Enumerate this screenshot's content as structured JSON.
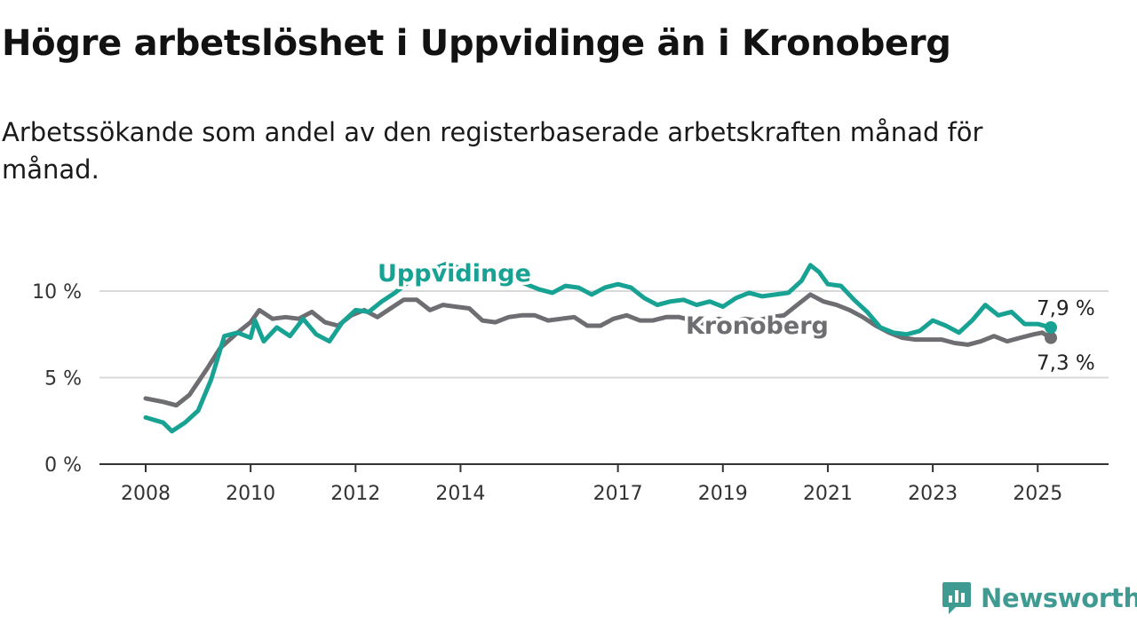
{
  "title": "Högre arbetslöshet i Uppvidinge än i Kronoberg",
  "subtitle": "Arbetssökande som andel av den registerbaserade arbetskraften månad för månad.",
  "brand": "Newsworthy",
  "colors": {
    "uppvidinge": "#17a293",
    "kronoberg": "#6e6d72",
    "grid": "#d9d9d9",
    "axis": "#333333"
  },
  "chart_data": {
    "type": "line",
    "title": "Högre arbetslöshet i Uppvidinge än i Kronoberg",
    "subtitle": "Arbetssökande som andel av den registerbaserade arbetskraften månad för månad.",
    "xlabel": "",
    "ylabel": "",
    "x_range": [
      "2008-01",
      "2025-04"
    ],
    "ylim": [
      0,
      12
    ],
    "y_ticks": [
      0,
      5,
      10
    ],
    "y_tick_labels": [
      "0 %",
      "5 %",
      "10 %"
    ],
    "x_ticks": [
      2008,
      2010,
      2012,
      2014,
      2017,
      2019,
      2021,
      2023,
      2025
    ],
    "x_tick_labels": [
      "2008",
      "2010",
      "2012",
      "2014",
      "2017",
      "2019",
      "2021",
      "2023",
      "2025"
    ],
    "grid": true,
    "legend": "inline labels",
    "series": [
      {
        "name": "Uppvidinge",
        "end_value_label": "7,9 %",
        "points": [
          [
            "2008-01",
            2.7
          ],
          [
            "2008-05",
            2.4
          ],
          [
            "2008-07",
            1.9
          ],
          [
            "2008-10",
            2.4
          ],
          [
            "2009-01",
            3.1
          ],
          [
            "2009-04",
            4.9
          ],
          [
            "2009-07",
            7.4
          ],
          [
            "2009-10",
            7.6
          ],
          [
            "2010-01",
            7.3
          ],
          [
            "2010-02",
            8.3
          ],
          [
            "2010-04",
            7.1
          ],
          [
            "2010-07",
            7.9
          ],
          [
            "2010-10",
            7.4
          ],
          [
            "2011-01",
            8.4
          ],
          [
            "2011-04",
            7.5
          ],
          [
            "2011-07",
            7.1
          ],
          [
            "2011-10",
            8.2
          ],
          [
            "2012-01",
            8.9
          ],
          [
            "2012-04",
            8.8
          ],
          [
            "2012-07",
            9.4
          ],
          [
            "2012-10",
            9.9
          ],
          [
            "2013-01",
            10.5
          ],
          [
            "2013-04",
            10.9
          ],
          [
            "2013-07",
            11.3
          ],
          [
            "2013-10",
            11.6
          ],
          [
            "2014-01",
            11.3
          ],
          [
            "2014-04",
            11.0
          ],
          [
            "2014-07",
            11.1
          ],
          [
            "2014-10",
            10.8
          ],
          [
            "2015-01",
            10.7
          ],
          [
            "2015-04",
            10.4
          ],
          [
            "2015-07",
            10.1
          ],
          [
            "2015-10",
            9.9
          ],
          [
            "2016-01",
            10.3
          ],
          [
            "2016-04",
            10.2
          ],
          [
            "2016-07",
            9.8
          ],
          [
            "2016-10",
            10.2
          ],
          [
            "2017-01",
            10.4
          ],
          [
            "2017-04",
            10.2
          ],
          [
            "2017-07",
            9.6
          ],
          [
            "2017-10",
            9.2
          ],
          [
            "2018-01",
            9.4
          ],
          [
            "2018-04",
            9.5
          ],
          [
            "2018-07",
            9.2
          ],
          [
            "2018-10",
            9.4
          ],
          [
            "2019-01",
            9.1
          ],
          [
            "2019-04",
            9.6
          ],
          [
            "2019-07",
            9.9
          ],
          [
            "2019-10",
            9.7
          ],
          [
            "2020-01",
            9.8
          ],
          [
            "2020-04",
            9.9
          ],
          [
            "2020-07",
            10.6
          ],
          [
            "2020-09",
            11.5
          ],
          [
            "2020-11",
            11.1
          ],
          [
            "2021-01",
            10.4
          ],
          [
            "2021-04",
            10.3
          ],
          [
            "2021-07",
            9.5
          ],
          [
            "2021-10",
            8.8
          ],
          [
            "2022-01",
            7.9
          ],
          [
            "2022-04",
            7.6
          ],
          [
            "2022-07",
            7.5
          ],
          [
            "2022-10",
            7.7
          ],
          [
            "2023-01",
            8.3
          ],
          [
            "2023-04",
            8.0
          ],
          [
            "2023-07",
            7.6
          ],
          [
            "2023-10",
            8.3
          ],
          [
            "2024-01",
            9.2
          ],
          [
            "2024-04",
            8.6
          ],
          [
            "2024-07",
            8.8
          ],
          [
            "2024-10",
            8.1
          ],
          [
            "2025-01",
            8.1
          ],
          [
            "2025-04",
            7.9
          ]
        ]
      },
      {
        "name": "Kronoberg",
        "end_value_label": "7,3 %",
        "points": [
          [
            "2008-01",
            3.8
          ],
          [
            "2008-05",
            3.6
          ],
          [
            "2008-08",
            3.4
          ],
          [
            "2008-11",
            4.0
          ],
          [
            "2009-03",
            5.5
          ],
          [
            "2009-06",
            6.7
          ],
          [
            "2009-10",
            7.6
          ],
          [
            "2010-01",
            8.2
          ],
          [
            "2010-03",
            8.9
          ],
          [
            "2010-06",
            8.4
          ],
          [
            "2010-09",
            8.5
          ],
          [
            "2010-12",
            8.4
          ],
          [
            "2011-03",
            8.8
          ],
          [
            "2011-06",
            8.2
          ],
          [
            "2011-09",
            8.0
          ],
          [
            "2011-12",
            8.6
          ],
          [
            "2012-03",
            8.9
          ],
          [
            "2012-06",
            8.5
          ],
          [
            "2012-09",
            9.0
          ],
          [
            "2012-12",
            9.5
          ],
          [
            "2013-03",
            9.5
          ],
          [
            "2013-06",
            8.9
          ],
          [
            "2013-09",
            9.2
          ],
          [
            "2013-12",
            9.1
          ],
          [
            "2014-03",
            9.0
          ],
          [
            "2014-06",
            8.3
          ],
          [
            "2014-09",
            8.2
          ],
          [
            "2014-12",
            8.5
          ],
          [
            "2015-03",
            8.6
          ],
          [
            "2015-06",
            8.6
          ],
          [
            "2015-09",
            8.3
          ],
          [
            "2015-12",
            8.4
          ],
          [
            "2016-03",
            8.5
          ],
          [
            "2016-06",
            8.0
          ],
          [
            "2016-09",
            8.0
          ],
          [
            "2016-12",
            8.4
          ],
          [
            "2017-03",
            8.6
          ],
          [
            "2017-06",
            8.3
          ],
          [
            "2017-09",
            8.3
          ],
          [
            "2017-12",
            8.5
          ],
          [
            "2018-03",
            8.5
          ],
          [
            "2018-06",
            8.3
          ],
          [
            "2018-09",
            8.1
          ],
          [
            "2018-12",
            8.4
          ],
          [
            "2019-03",
            8.2
          ],
          [
            "2019-06",
            8.4
          ],
          [
            "2019-09",
            8.3
          ],
          [
            "2019-12",
            8.5
          ],
          [
            "2020-03",
            8.6
          ],
          [
            "2020-06",
            9.2
          ],
          [
            "2020-09",
            9.8
          ],
          [
            "2020-12",
            9.4
          ],
          [
            "2021-03",
            9.2
          ],
          [
            "2021-06",
            8.9
          ],
          [
            "2021-09",
            8.5
          ],
          [
            "2021-12",
            8.0
          ],
          [
            "2022-03",
            7.6
          ],
          [
            "2022-06",
            7.3
          ],
          [
            "2022-09",
            7.2
          ],
          [
            "2022-12",
            7.2
          ],
          [
            "2023-03",
            7.2
          ],
          [
            "2023-06",
            7.0
          ],
          [
            "2023-09",
            6.9
          ],
          [
            "2023-12",
            7.1
          ],
          [
            "2024-03",
            7.4
          ],
          [
            "2024-06",
            7.1
          ],
          [
            "2024-09",
            7.3
          ],
          [
            "2024-12",
            7.5
          ],
          [
            "2025-02",
            7.6
          ],
          [
            "2025-04",
            7.3
          ]
        ]
      }
    ]
  }
}
